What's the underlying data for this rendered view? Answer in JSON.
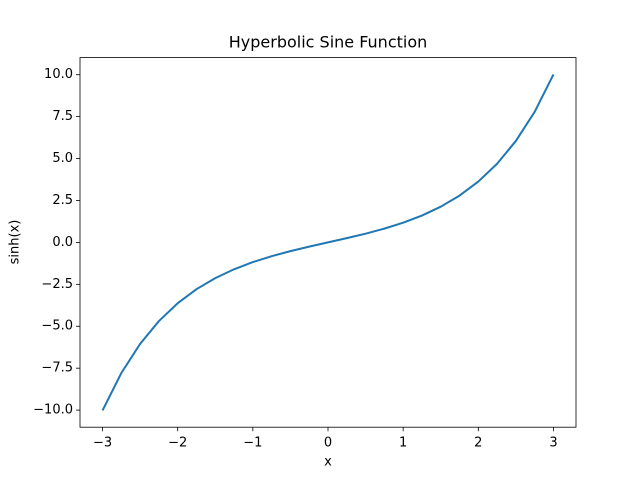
{
  "chart_data": {
    "type": "line",
    "title": "Hyperbolic Sine Function",
    "x_label": "x",
    "y_label": "sinh(x)",
    "x": [
      -3,
      -2.75,
      -2.5,
      -2.25,
      -2,
      -1.75,
      -1.5,
      -1.25,
      -1,
      -0.75,
      -0.5,
      -0.25,
      0,
      0.25,
      0.5,
      0.75,
      1,
      1.25,
      1.5,
      1.75,
      2,
      2.25,
      2.5,
      2.75,
      3
    ],
    "series": [
      {
        "color": "#1f77b4",
        "values": [
          -10.018,
          -7.789,
          -6.05,
          -4.691,
          -3.627,
          -2.79,
          -2.129,
          -1.602,
          -1.175,
          -0.822,
          -0.521,
          -0.253,
          0,
          0.253,
          0.521,
          0.822,
          1.175,
          1.602,
          2.129,
          2.79,
          3.627,
          4.691,
          6.05,
          7.789,
          10.018
        ]
      }
    ],
    "xlim": [
      -3.3,
      3.3
    ],
    "ylim": [
      -11.02,
      11.02
    ],
    "xticks": [
      {
        "value": -3,
        "label": "−3"
      },
      {
        "value": -2,
        "label": "−2"
      },
      {
        "value": -1,
        "label": "−1"
      },
      0,
      1,
      2,
      3
    ],
    "yticks": [
      {
        "value": -10,
        "label": "−10.0"
      },
      {
        "value": -7.5,
        "label": "−7.5"
      },
      {
        "value": -5,
        "label": "−5.0"
      },
      {
        "value": -2.5,
        "label": "−2.5"
      },
      {
        "value": 0,
        "label": "0.0"
      },
      {
        "value": 2.5,
        "label": "2.5"
      },
      {
        "value": 5,
        "label": "5.0"
      },
      {
        "value": 7.5,
        "label": "7.5"
      },
      {
        "value": 10,
        "label": "10.0"
      }
    ]
  }
}
